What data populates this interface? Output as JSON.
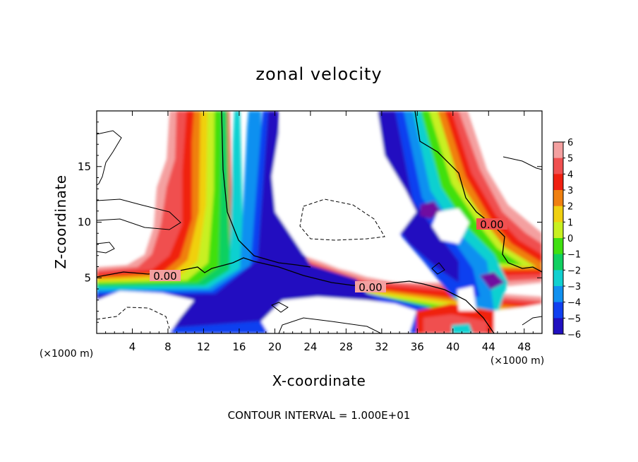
{
  "chart_data": {
    "type": "heatmap",
    "title": "zonal velocity",
    "xlabel": "X-coordinate",
    "ylabel": "Z-coordinate",
    "x_unit": "(×1000 m)",
    "z_unit": "(×1000 m)",
    "xlim": [
      0,
      50
    ],
    "ylim": [
      0,
      20
    ],
    "x_ticks": [
      4,
      8,
      12,
      16,
      20,
      24,
      28,
      32,
      36,
      40,
      44,
      48
    ],
    "y_ticks": [
      5,
      10,
      15
    ],
    "colorbar": {
      "levels": [
        6,
        5,
        4,
        3,
        2,
        1,
        0,
        -1,
        -2,
        -3,
        -4,
        -5,
        -6
      ],
      "colors": [
        "#f4a0a0",
        "#f05050",
        "#f02010",
        "#f08010",
        "#f0d010",
        "#c8f020",
        "#40e010",
        "#10d060",
        "#10d0d0",
        "#1090f0",
        "#1040f0",
        "#2010c0",
        "#7010a0"
      ],
      "tick_labels": [
        "6",
        "5",
        "4",
        "3",
        "2",
        "1",
        "0",
        "−1",
        "−2",
        "−3",
        "−4",
        "−5",
        "−6"
      ]
    },
    "contour_labels": [
      {
        "text": "0.00",
        "x": 6.3,
        "y": 5.0
      },
      {
        "text": "0.00",
        "x": 30.0,
        "y": 4.2
      },
      {
        "text": "0.00",
        "x": 44.0,
        "y": 9.7
      }
    ],
    "footer": "CONTOUR INTERVAL = 1.000E+01"
  }
}
